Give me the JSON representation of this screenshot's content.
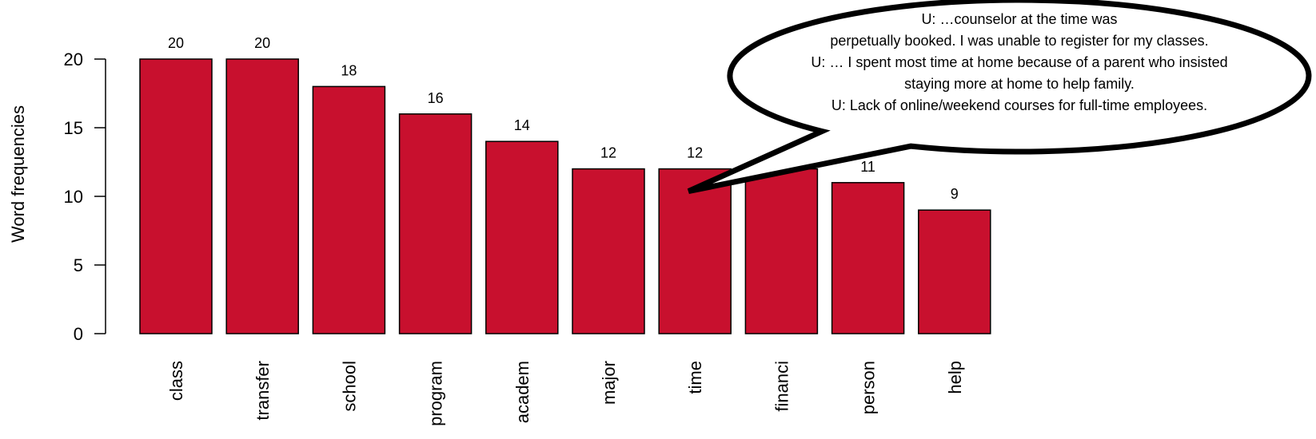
{
  "chart_data": {
    "type": "bar",
    "categories": [
      "class",
      "transfer",
      "school",
      "program",
      "academ",
      "major",
      "time",
      "financi",
      "person",
      "help"
    ],
    "values": [
      20,
      20,
      18,
      16,
      14,
      12,
      12,
      12,
      11,
      9
    ],
    "data_labels": [
      "20",
      "20",
      "18",
      "16",
      "14",
      "12",
      "12",
      "",
      "11",
      "9"
    ],
    "title": "",
    "xlabel": "",
    "ylabel": "Word frequencies",
    "ylim": [
      0,
      20
    ],
    "yticks": [
      0,
      5,
      10,
      15,
      20
    ],
    "bar_color": "#c8102e",
    "grid": false,
    "legend": "none",
    "annotation": {
      "points_to": "time",
      "lines": [
        "U: …counselor at the time was",
        "perpetually booked. I was unable to register for my classes.",
        "U: … I spent most time at home because of a parent who insisted",
        "staying more at home to help family.",
        "U: Lack of online/weekend courses for full-time employees."
      ]
    }
  }
}
